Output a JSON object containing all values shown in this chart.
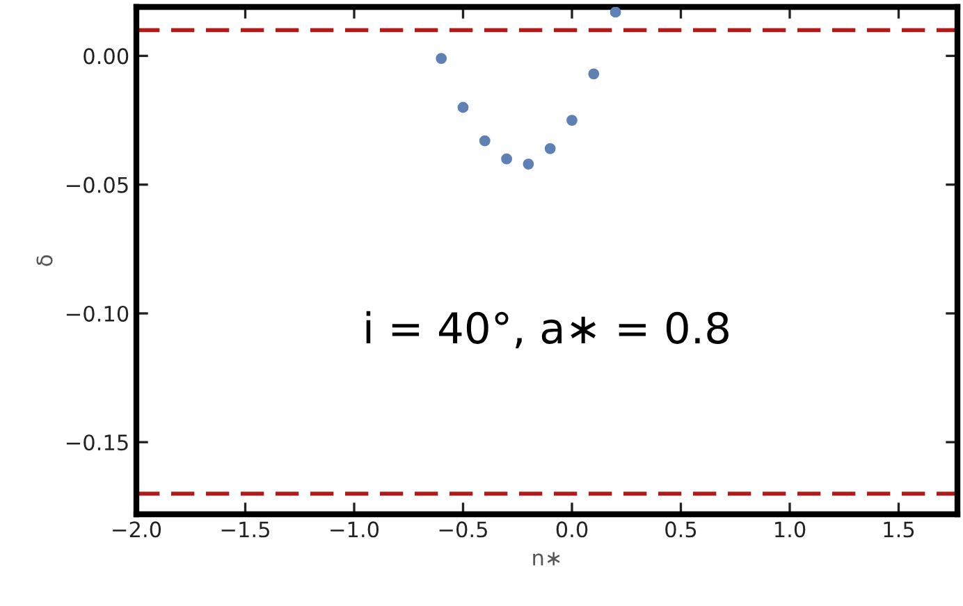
{
  "chart_data": {
    "type": "scatter",
    "xlabel": "n∗",
    "ylabel": "δ",
    "x": [
      -0.6,
      -0.5,
      -0.4,
      -0.3,
      -0.2,
      -0.1,
      0.0,
      0.1,
      0.2
    ],
    "series": [
      {
        "color": "#5e81b5",
        "values": [
          -0.001,
          -0.02,
          -0.033,
          -0.04,
          -0.042,
          -0.036,
          -0.025,
          -0.007,
          0.017
        ]
      }
    ],
    "xlim": [
      -2.0,
      1.77
    ],
    "ylim": [
      -0.178,
      0.019
    ],
    "xticks": [
      {
        "value": -2.0,
        "label": "−2.0"
      },
      {
        "value": -1.5,
        "label": "−1.5"
      },
      {
        "value": -1.0,
        "label": "−1.0"
      },
      {
        "value": -0.5,
        "label": "−0.5"
      },
      {
        "value": 0.0,
        "label": "0.0"
      },
      {
        "value": 0.5,
        "label": "0.5"
      },
      {
        "value": 1.0,
        "label": "1.0"
      },
      {
        "value": 1.5,
        "label": "1.5"
      }
    ],
    "yticks": [
      {
        "value": 0.0,
        "label": "0.00"
      },
      {
        "value": -0.05,
        "label": "−0.05"
      },
      {
        "value": -0.1,
        "label": "−0.10"
      },
      {
        "value": -0.15,
        "label": "−0.15"
      }
    ],
    "ref_lines": [
      {
        "axis": "y",
        "value": 0.01,
        "color": "#b21a1a",
        "line_style": "dashed"
      },
      {
        "axis": "y",
        "value": -0.17,
        "color": "#b21a1a",
        "line_style": "dashed"
      }
    ],
    "annotations": [
      "i = 40°, a∗ = 0.8"
    ],
    "marker": "circle",
    "grid": false,
    "legend": false
  }
}
